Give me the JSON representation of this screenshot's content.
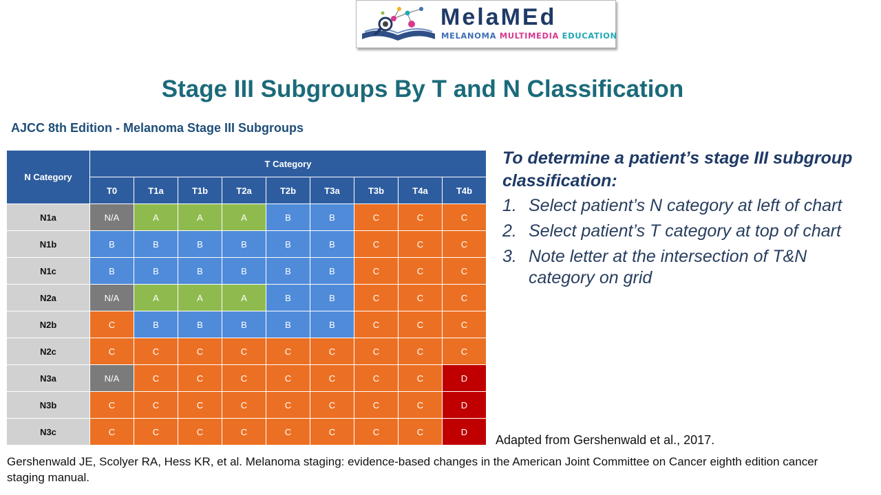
{
  "logo": {
    "word": "MelaMEd",
    "tagline": {
      "part1": "MELANOMA ",
      "part2": "MULTIMEDIA ",
      "part3": "EDUCATION"
    }
  },
  "title": "Stage III Subgroups By T and N Classification",
  "subtitle": "AJCC 8th Edition - Melanoma Stage III Subgroups",
  "table": {
    "n_header": "N Category",
    "t_header": "T Category",
    "columns": [
      "T0",
      "T1a",
      "T1b",
      "T2a",
      "T2b",
      "T3a",
      "T3b",
      "T4a",
      "T4b"
    ],
    "rows": [
      {
        "label": "N1a",
        "cells": [
          "N/A",
          "A",
          "A",
          "A",
          "B",
          "B",
          "C",
          "C",
          "C"
        ]
      },
      {
        "label": "N1b",
        "cells": [
          "B",
          "B",
          "B",
          "B",
          "B",
          "B",
          "C",
          "C",
          "C"
        ]
      },
      {
        "label": "N1c",
        "cells": [
          "B",
          "B",
          "B",
          "B",
          "B",
          "B",
          "C",
          "C",
          "C"
        ]
      },
      {
        "label": "N2a",
        "cells": [
          "N/A",
          "A",
          "A",
          "A",
          "B",
          "B",
          "C",
          "C",
          "C"
        ]
      },
      {
        "label": "N2b",
        "cells": [
          "C",
          "B",
          "B",
          "B",
          "B",
          "B",
          "C",
          "C",
          "C"
        ]
      },
      {
        "label": "N2c",
        "cells": [
          "C",
          "C",
          "C",
          "C",
          "C",
          "C",
          "C",
          "C",
          "C"
        ]
      },
      {
        "label": "N3a",
        "cells": [
          "N/A",
          "C",
          "C",
          "C",
          "C",
          "C",
          "C",
          "C",
          "D"
        ]
      },
      {
        "label": "N3b",
        "cells": [
          "C",
          "C",
          "C",
          "C",
          "C",
          "C",
          "C",
          "C",
          "D"
        ]
      },
      {
        "label": "N3c",
        "cells": [
          "C",
          "C",
          "C",
          "C",
          "C",
          "C",
          "C",
          "C",
          "D"
        ]
      }
    ],
    "colors": {
      "A": "#8fbb4e",
      "B": "#4f8bd9",
      "C": "#ec7023",
      "D": "#c00000",
      "N/A": "#7b7b7b",
      "header": "#2e5d9f",
      "row_label": "#d1d1d1"
    }
  },
  "instructions": {
    "heading": "To determine a patient’s stage III subgroup classification:",
    "steps": [
      {
        "num": "1.",
        "text": "Select patient’s N category at left of chart"
      },
      {
        "num": "2.",
        "text": "Select patient’s T category at top of chart"
      },
      {
        "num": "3.",
        "text": "Note letter at the intersection of T&N category on grid"
      }
    ]
  },
  "adapted": "Adapted from Gershenwald et al., 2017.",
  "citation": "Gershenwald JE, Scolyer RA, Hess KR, et al. Melanoma staging: evidence-based changes in the American Joint Committee on Cancer eighth edition cancer staging manual."
}
